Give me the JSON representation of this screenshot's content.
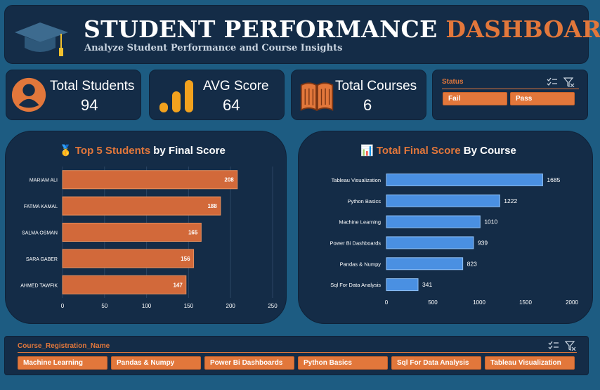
{
  "header": {
    "title_main": "STUDENT PERFORMANCE",
    "title_accent": "DASHBOARD",
    "subtitle": "Analyze Student Performance and Course Insights",
    "cap_icon": "graduation-cap-icon"
  },
  "kpis": {
    "students": {
      "label": "Total Students",
      "value": "94",
      "icon": "person-icon"
    },
    "avg": {
      "label": "AVG Score",
      "value": "64",
      "icon": "bar-chart-icon"
    },
    "courses": {
      "label": "Total Courses",
      "value": "6",
      "icon": "open-book-icon"
    }
  },
  "status_slicer": {
    "title": "Status",
    "options": [
      "Fail",
      "Pass"
    ]
  },
  "course_slicer": {
    "title": "Course_Registration_Name",
    "options": [
      "Machine Learning",
      "Pandas & Numpy",
      "Power Bi Dashboards",
      "Python Basics",
      "Sql For Data Analysis",
      "Tableau Visualization"
    ]
  },
  "colors": {
    "accent": "#e2773b",
    "panel": "#142c47",
    "background": "#1d5c82",
    "bar_orange": "#d2693a",
    "bar_blue": "#4a90e2"
  },
  "chart_data": [
    {
      "type": "bar",
      "orientation": "horizontal",
      "title_emoji": "🥇",
      "title_highlight": "Top 5 Students",
      "title_rest": " by Final Score",
      "categories": [
        "MARIAM ALI",
        "FATMA KAMAL",
        "SALMA OSMAN",
        "SARA GABER",
        "AHMED TAWFIK"
      ],
      "values": [
        208,
        188,
        165,
        156,
        147
      ],
      "xlim": [
        0,
        250
      ],
      "xticks": [
        0,
        50,
        100,
        150,
        200,
        250
      ],
      "data_label_position": "inside-end",
      "grid": true
    },
    {
      "type": "bar",
      "orientation": "horizontal",
      "title_emoji": "📊",
      "title_highlight": "Total  Final Score",
      "title_rest": " By Course",
      "categories": [
        "Tableau Visualization",
        "Python Basics",
        "Machine Learning",
        "Power Bi Dashboards",
        "Pandas & Numpy",
        "Sql For Data Analysis"
      ],
      "values": [
        1685,
        1222,
        1010,
        939,
        823,
        341
      ],
      "xlim": [
        0,
        2000
      ],
      "xticks": [
        0,
        500,
        1000,
        1500,
        2000
      ],
      "data_label_position": "outside-end",
      "grid": false
    }
  ]
}
